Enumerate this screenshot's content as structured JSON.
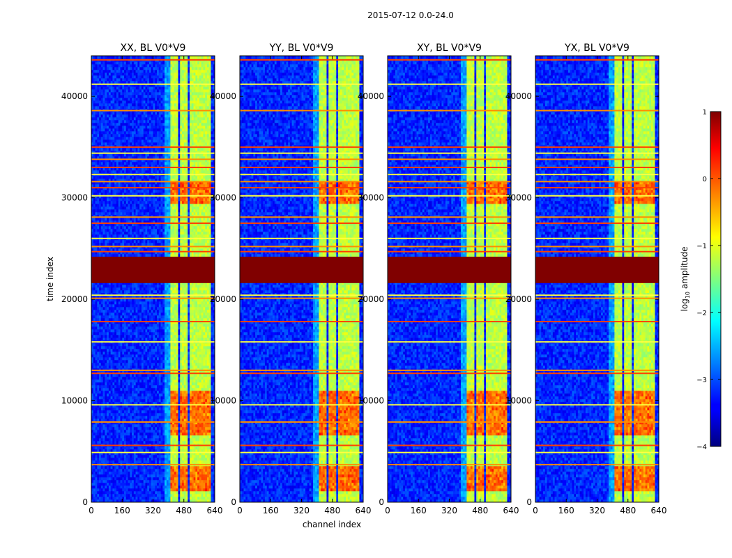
{
  "chart_data": {
    "type": "heatmap",
    "suptitle": "2015-07-12 0.0-24.0",
    "xlabel": "channel index",
    "ylabel": "time index",
    "xlim": [
      0,
      640
    ],
    "ylim": [
      0,
      44000
    ],
    "xticks": [
      0,
      160,
      320,
      480,
      640
    ],
    "yticks": [
      0,
      10000,
      20000,
      30000,
      40000
    ],
    "panels": [
      {
        "title": "XX, BL V0*V9"
      },
      {
        "title": "YY, BL V0*V9"
      },
      {
        "title": "XY, BL V0*V9"
      },
      {
        "title": "YX, BL V0*V9"
      }
    ],
    "colorbar": {
      "label": "log10 amplitude",
      "label_parts": {
        "base": "log",
        "sub": "10",
        "rest": " amplitude"
      },
      "colormap": "jet",
      "range": [
        -4,
        1
      ],
      "ticks": [
        1,
        0,
        -1,
        -2,
        -3,
        -4
      ],
      "tick_labels": [
        "1",
        "0",
        "−1",
        "−2",
        "−3",
        "−4"
      ]
    },
    "features": {
      "background_level": -3.2,
      "signal_channel_ranges": [
        [
          410,
          450
        ],
        [
          460,
          500
        ],
        [
          510,
          545
        ],
        [
          555,
          590
        ],
        [
          595,
          620
        ]
      ],
      "signal_level": -1.2,
      "strong_time_ranges": [
        [
          6500,
          11000
        ],
        [
          29500,
          31500
        ],
        [
          1000,
          3500
        ]
      ],
      "saturated_time_ranges": [
        [
          21600,
          24200
        ]
      ],
      "bright_time_lines": [
        3700,
        4900,
        5600,
        7900,
        9600,
        12700,
        13000,
        15800,
        17800,
        20100,
        20400,
        24700,
        25200,
        26000,
        27500,
        28100,
        30200,
        31000,
        31600,
        32300,
        33000,
        33800,
        34400,
        35000,
        38600,
        41200,
        43600
      ]
    }
  }
}
